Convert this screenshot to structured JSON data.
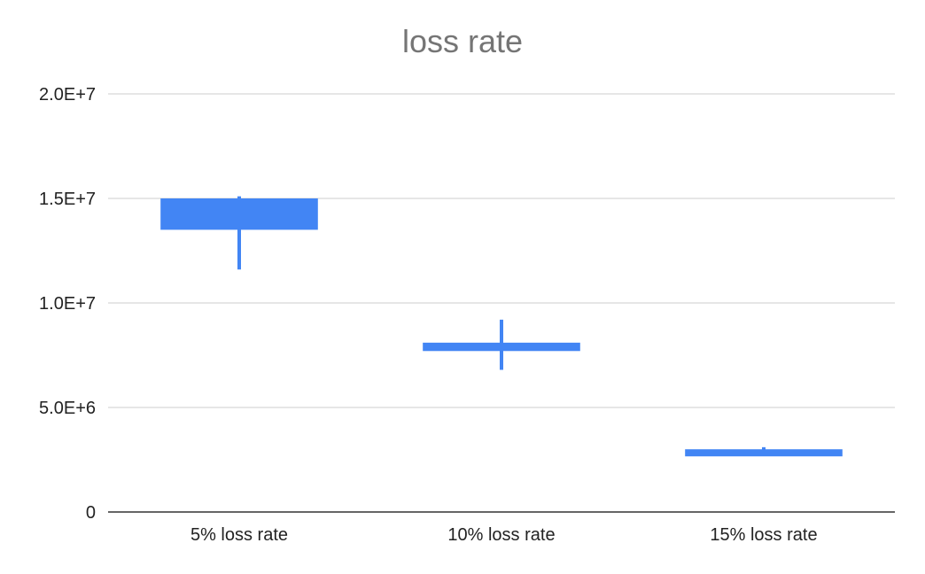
{
  "chart_data": {
    "type": "candlestick",
    "title": "loss rate",
    "xlabel": "",
    "ylabel": "",
    "ylim": [
      0,
      20000000
    ],
    "y_ticks": [
      {
        "value": 0,
        "label": "0"
      },
      {
        "value": 5000000,
        "label": "5.0E+6"
      },
      {
        "value": 10000000,
        "label": "1.0E+7"
      },
      {
        "value": 15000000,
        "label": "1.5E+7"
      },
      {
        "value": 20000000,
        "label": "2.0E+7"
      }
    ],
    "categories": [
      "5% loss rate",
      "10% loss rate",
      "15% loss rate"
    ],
    "series": [
      {
        "low": [
          11600000,
          6800000,
          2850000
        ],
        "open": [
          15000000,
          8100000,
          3000000
        ],
        "close": [
          13500000,
          7700000,
          2850000
        ],
        "high": [
          15100000,
          9200000,
          3100000
        ]
      }
    ],
    "color": "#4285f4",
    "gridlines": true,
    "legend": "none"
  }
}
